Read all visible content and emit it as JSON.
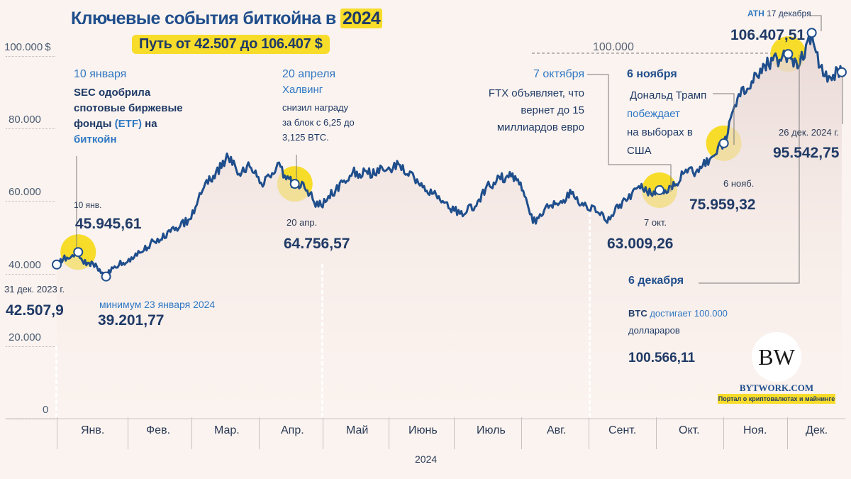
{
  "title": {
    "prefix": "Ключевые события биткойна в",
    "year": "2024"
  },
  "subtitle": "Путь от 42.507 до 106.407 $",
  "chart_data": {
    "type": "line",
    "title": "Ключевые события биткойна в 2024",
    "subtitle": "Путь от 42.507 до 106.407 $",
    "xlabel": "2024",
    "ylabel": "$",
    "ylim": [
      0,
      110000
    ],
    "yticks": [
      "100.000",
      "80.000",
      "60.000",
      "40.000",
      "20.000",
      "0"
    ],
    "ytick_values": [
      100000,
      80000,
      60000,
      40000,
      20000,
      0
    ],
    "categories": [
      "Янв.",
      "Фев.",
      "Мар.",
      "Апр.",
      "Май",
      "Июнь",
      "Июль",
      "Авг.",
      "Сент.",
      "Окт.",
      "Ноя.",
      "Дек."
    ],
    "series": [
      {
        "values_by_day": [
          [
            0,
            42508
          ],
          [
            3,
            44000
          ],
          [
            6,
            44200
          ],
          [
            10,
            45946
          ],
          [
            12,
            43500
          ],
          [
            15,
            43000
          ],
          [
            20,
            41200
          ],
          [
            23,
            39202
          ],
          [
            27,
            42000
          ],
          [
            31,
            43000
          ],
          [
            40,
            46000
          ],
          [
            45,
            49000
          ],
          [
            55,
            52000
          ],
          [
            62,
            55000
          ],
          [
            68,
            63000
          ],
          [
            73,
            67000
          ],
          [
            80,
            72000
          ],
          [
            85,
            67500
          ],
          [
            90,
            69500
          ],
          [
            96,
            64000
          ],
          [
            103,
            70500
          ],
          [
            107,
            66000
          ],
          [
            111,
            64757
          ],
          [
            115,
            65000
          ],
          [
            118,
            62000
          ],
          [
            122,
            58500
          ],
          [
            130,
            63000
          ],
          [
            138,
            68000
          ],
          [
            145,
            67500
          ],
          [
            160,
            70000
          ],
          [
            170,
            65000
          ],
          [
            175,
            62000
          ],
          [
            180,
            60000
          ],
          [
            188,
            56500
          ],
          [
            195,
            58500
          ],
          [
            200,
            63500
          ],
          [
            205,
            65500
          ],
          [
            210,
            67000
          ],
          [
            215,
            66000
          ],
          [
            220,
            58000
          ],
          [
            222,
            54000
          ],
          [
            228,
            58500
          ],
          [
            235,
            60000
          ],
          [
            240,
            62000
          ],
          [
            245,
            59500
          ],
          [
            252,
            57000
          ],
          [
            256,
            54500
          ],
          [
            260,
            57000
          ],
          [
            265,
            60500
          ],
          [
            272,
            63500
          ],
          [
            277,
            62000
          ],
          [
            281,
            63009
          ],
          [
            285,
            62500
          ],
          [
            292,
            67500
          ],
          [
            298,
            68000
          ],
          [
            305,
            72000
          ],
          [
            311,
            75959
          ],
          [
            318,
            89500
          ],
          [
            322,
            91000
          ],
          [
            330,
            97500
          ],
          [
            337,
            99000
          ],
          [
            341,
            100566
          ],
          [
            346,
            97000
          ],
          [
            352,
            106408
          ],
          [
            356,
            97000
          ],
          [
            360,
            94500
          ],
          [
            366,
            95543
          ]
        ]
      }
    ],
    "annotations": [
      {
        "date": "10 января",
        "lines": [
          "SEC одобрила",
          "спотовые биржевые",
          "фонды (ETF) на",
          "биткойн"
        ],
        "short": "10 янв.",
        "value": "45.945,61"
      },
      {
        "date": "20 апреля",
        "lines": [
          "Халвинг",
          "снизил награду",
          "за блок с 6,25 до",
          "3,125 BTC."
        ],
        "short": "20 апр.",
        "value": "64.756,57"
      },
      {
        "date": "7 октября",
        "lines": [
          "FTX объявляет, что",
          "вернет до 15",
          "миллиардов евро"
        ],
        "short": "7 окт.",
        "value": "63.009,26"
      },
      {
        "date": "6 ноября",
        "lines": [
          "Дональд Трамп",
          "побеждает",
          "на выборах в",
          "США"
        ],
        "short": "6 нояб.",
        "value": "75.959,32"
      },
      {
        "date": "6 декабря",
        "lines": [
          "BTC достигает 100.000",
          "доллараров"
        ],
        "value": "100.566,11"
      },
      {
        "date": "17 декабря",
        "short": "ATH",
        "value": "106.407,51"
      },
      {
        "date": "26 дек. 2024 г.",
        "value": "95.542,75"
      },
      {
        "date": "31 дек. 2023 г.",
        "value": "42.507,9"
      },
      {
        "date": "минимум 23 января 2024",
        "value": "39.201,77"
      }
    ],
    "reference_line": {
      "label": "100.000",
      "value": 100000
    },
    "colors": {
      "line": "#1f4e8c",
      "highlight": "#f7dc2a",
      "label_blue": "#2f78c4"
    },
    "grid": true
  },
  "labels": {
    "y_unit": "$",
    "ref_line": "100.000",
    "xyear": "2024",
    "start_date": "31 дек. 2023 г.",
    "start_value": "42.507,9",
    "min_date": "минимум 23 января 2024",
    "min_value": "39.201,77",
    "jan_date": "10 января",
    "jan_l1": "SEC одобрила",
    "jan_l2": "спотовые биржевые",
    "jan_l3_pre": "фонды ",
    "jan_l3_etf": "(ETF)",
    "jan_l3_post": " на",
    "jan_l4": "биткойн",
    "jan_short": "10 янв.",
    "jan_value": "45.945,61",
    "apr_date": "20 апреля",
    "apr_l1": "Халвинг",
    "apr_l2": "снизил награду",
    "apr_l3": "за блок с 6,25 до",
    "apr_l4": "3,125 BTC.",
    "apr_short": "20 апр.",
    "apr_value": "64.756,57",
    "oct_date": "7 октября",
    "oct_l1": "FTX объявляет, что",
    "oct_l2": "вернет до 15",
    "oct_l3": "миллиардов евро",
    "oct_short": "7 окт.",
    "oct_value": "63.009,26",
    "nov_date": "6 ноября",
    "nov_l1": "Дональд Трамп",
    "nov_l2": "побеждает",
    "nov_l3": "на выборах в",
    "nov_l4": "США",
    "nov_short": "6 нояб.",
    "nov_value": "75.959,32",
    "dec_date": "6 декабря",
    "dec_l1_pre": "BTC ",
    "dec_l1_post": "достигает 100.000",
    "dec_l2": "доллараров",
    "dec_value": "100.566,11",
    "ath_tag": "ATH",
    "ath_date": "17 декабря",
    "ath_value": "106.407,51",
    "end_date": "26 дек. 2024 г.",
    "end_value": "95.542,75"
  },
  "logo": {
    "mark": "BW",
    "name": "BYTWORK.COM",
    "tagline": "Портал о  криптовалютах и майнинге"
  }
}
